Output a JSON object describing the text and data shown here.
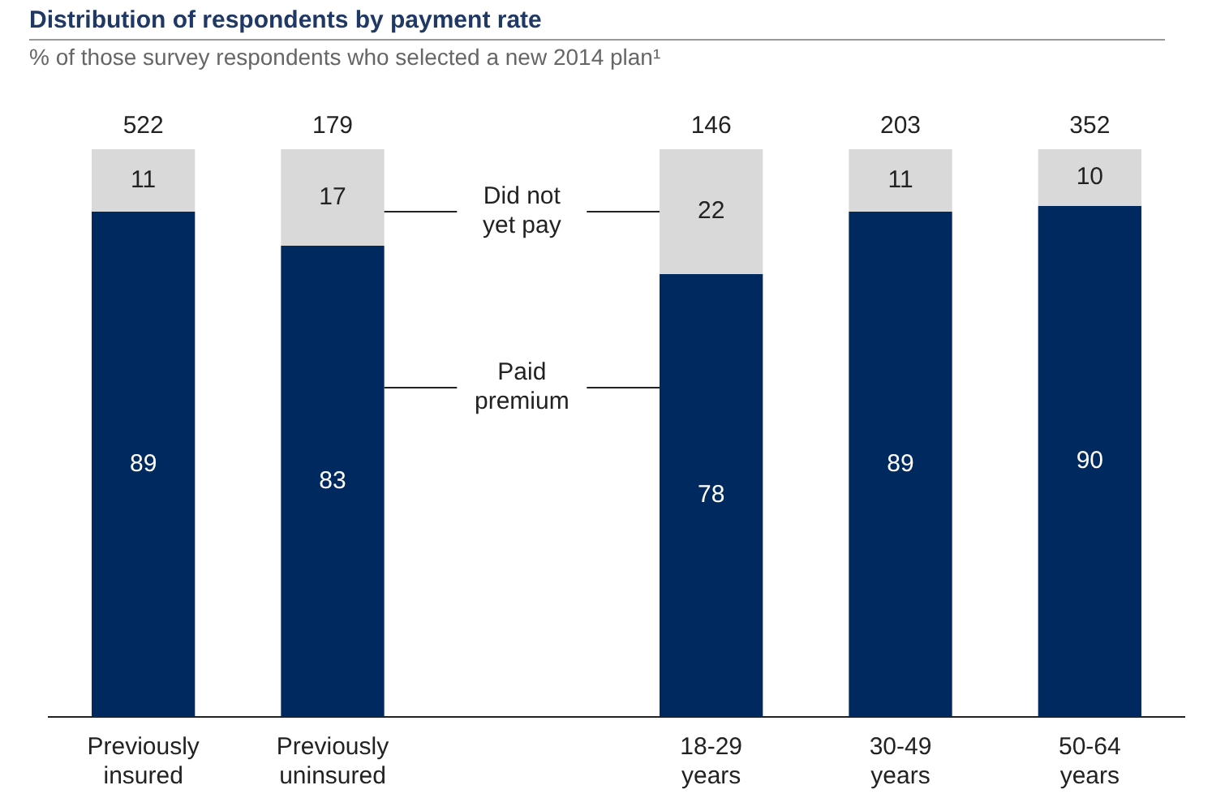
{
  "chart_data": {
    "type": "bar",
    "title": "Distribution of respondents by payment rate",
    "subtitle": "% of those survey respondents who selected a new 2014 plan¹",
    "categories": [
      "Previously insured",
      "Previously uninsured",
      null,
      "18-29 years",
      "30-49 years",
      "50-64 years"
    ],
    "stacked": true,
    "data_labels": true,
    "ylim": [
      0,
      100
    ],
    "tick_labels": "x",
    "grid": false,
    "legend": false,
    "series": [
      {
        "name": "Paid premium",
        "color": "#002960",
        "values": [
          89,
          83,
          null,
          78,
          89,
          90
        ]
      },
      {
        "name": "Did not yet pay",
        "color": "#d9d9d9",
        "values": [
          11,
          17,
          null,
          22,
          11,
          10
        ]
      }
    ],
    "annotations": [
      {
        "text": "522",
        "x": "Previously insured",
        "y": 100
      },
      {
        "text": "179",
        "x": "Previously uninsured",
        "y": 100
      },
      {
        "text": "146",
        "x": "18-29 years",
        "y": 100
      },
      {
        "text": "203",
        "x": "30-49 years",
        "y": 100
      },
      {
        "text": "352",
        "x": "50-64 years",
        "y": 100
      }
    ]
  }
}
